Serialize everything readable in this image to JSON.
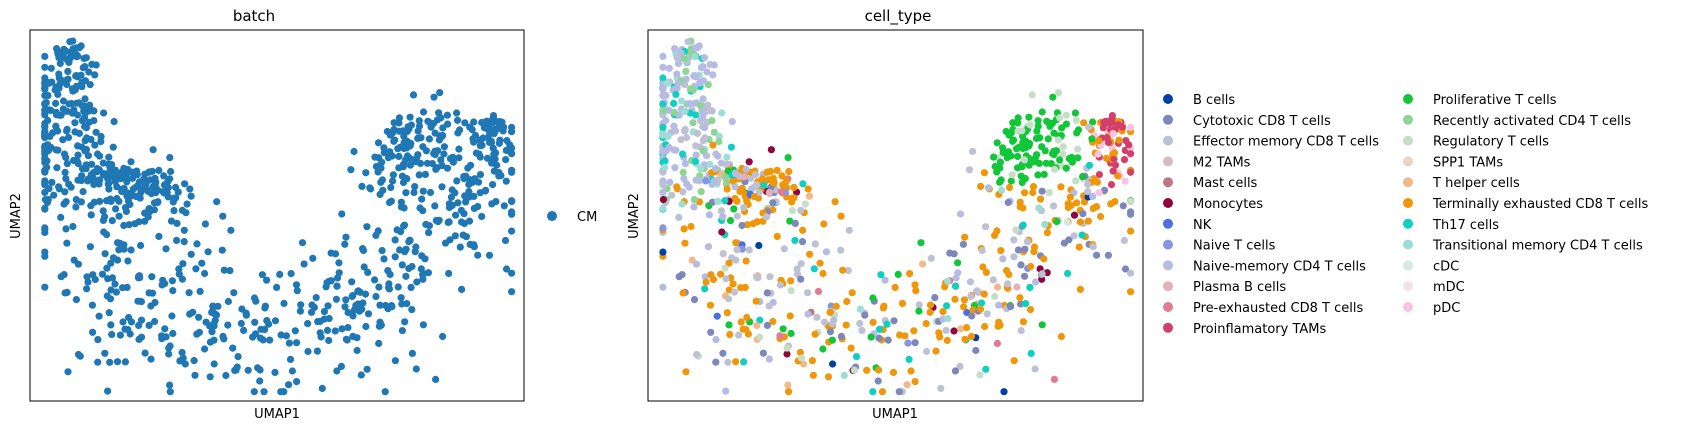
{
  "chart_data": [
    {
      "type": "scatter",
      "title": "batch",
      "xlabel": "UMAP1",
      "ylabel": "UMAP2",
      "xticks": "none",
      "yticks": "none",
      "grid": false,
      "legend_position": "right",
      "legend": [
        {
          "label": "CM",
          "color": "#1f77b4"
        }
      ],
      "series": [
        {
          "name": "CM",
          "color": "#1f77b4",
          "n_points": 1000,
          "shape": "U-shaped cloud"
        }
      ]
    },
    {
      "type": "scatter",
      "title": "cell_type",
      "xlabel": "UMAP1",
      "ylabel": "UMAP2",
      "xticks": "none",
      "yticks": "none",
      "grid": false,
      "legend_position": "right",
      "legend_columns": 2,
      "legend": [
        {
          "label": "B cells",
          "color": "#023fa5"
        },
        {
          "label": "Cytotoxic CD8 T cells",
          "color": "#7d87b9"
        },
        {
          "label": "Effector memory CD8 T cells",
          "color": "#bec1d4"
        },
        {
          "label": "M2 TAMs",
          "color": "#d6bcc0"
        },
        {
          "label": "Mast cells",
          "color": "#bb7784"
        },
        {
          "label": "Monocytes",
          "color": "#8e063b"
        },
        {
          "label": "NK",
          "color": "#4a6fe3"
        },
        {
          "label": "Naive T cells",
          "color": "#8595e1"
        },
        {
          "label": "Naive-memory CD4 T cells",
          "color": "#b5bbe3"
        },
        {
          "label": "Plasma B cells",
          "color": "#e6afb9"
        },
        {
          "label": "Pre-exhausted CD8 T cells",
          "color": "#e07b91"
        },
        {
          "label": "Proinflamatory TAMs",
          "color": "#d33f6a"
        },
        {
          "label": "Proliferative T cells",
          "color": "#11c638"
        },
        {
          "label": "Recently activated CD4 T cells",
          "color": "#8dd593"
        },
        {
          "label": "Regulatory T cells",
          "color": "#c6dec7"
        },
        {
          "label": "SPP1 TAMs",
          "color": "#ead3c6"
        },
        {
          "label": "T helper cells",
          "color": "#f0b98d"
        },
        {
          "label": "Terminally exhausted CD8 T cells",
          "color": "#ef9708"
        },
        {
          "label": "Th17 cells",
          "color": "#0fcfc0"
        },
        {
          "label": "Transitional memory CD4 T cells",
          "color": "#9cded6"
        },
        {
          "label": "cDC",
          "color": "#d5eae7"
        },
        {
          "label": "mDC",
          "color": "#f3e1eb"
        },
        {
          "label": "pDC",
          "color": "#f6c4e1"
        }
      ]
    }
  ]
}
